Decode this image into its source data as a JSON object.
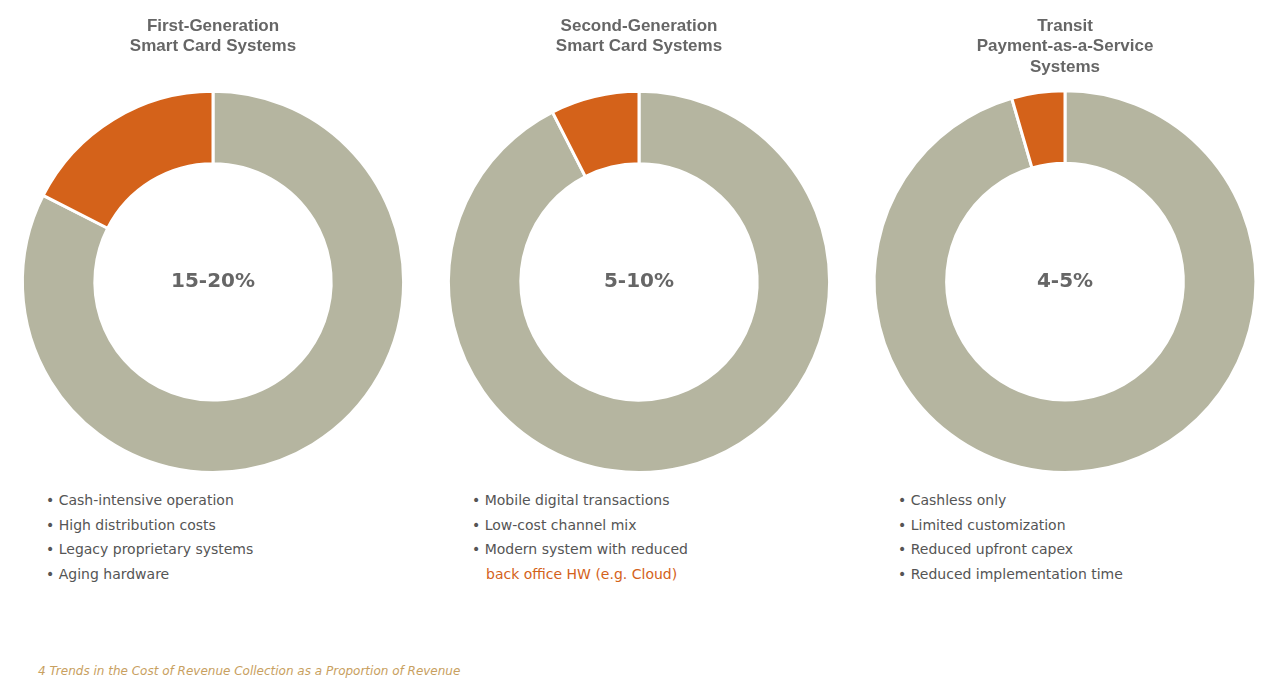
{
  "chart_data": [
    {
      "type": "doughnut",
      "title": "First-Generation\nSmart Card Systems",
      "values": [
        82.5,
        17.5
      ],
      "colors": [
        "#b5b5a0",
        "#d4621a"
      ],
      "annotations": {
        "center": "15-20%",
        "bullets": [
          {
            "text": "• Cash-intensive operation",
            "color": "#555555"
          },
          {
            "text": "• High distribution costs",
            "color": "#555555"
          },
          {
            "text": "• Legacy proprietary systems",
            "color": "#555555"
          },
          {
            "text": "• Aging hardware",
            "color": "#555555"
          }
        ]
      }
    },
    {
      "type": "doughnut",
      "title": "Second-Generation\nSmart Card Systems",
      "values": [
        92.5,
        7.5
      ],
      "colors": [
        "#b5b5a0",
        "#d4621a"
      ],
      "annotations": {
        "center": "5-10%",
        "bullets": [
          {
            "text": "• Mobile digital transactions",
            "color": "#555555"
          },
          {
            "text": "• Low-cost channel mix",
            "color": "#555555"
          },
          {
            "text": "• Modern system with reduced",
            "color": "#555555"
          },
          {
            "text": "back office HW (e.g. Cloud)",
            "color": "#d4621a",
            "continuation": true
          }
        ]
      }
    },
    {
      "type": "doughnut",
      "title": "Transit\nPayment-as-a-Service\nSystems",
      "values": [
        95.5,
        4.5
      ],
      "colors": [
        "#b5b5a0",
        "#d4621a"
      ],
      "annotations": {
        "center": "4-5%",
        "bullets": [
          {
            "text": "• Cashless only",
            "color": "#555555"
          },
          {
            "text": "• Limited customization",
            "color": "#555555"
          },
          {
            "text": "• Reduced upfront capex",
            "color": "#555555"
          },
          {
            "text": "• Reduced implementation time",
            "color": "#555555"
          }
        ]
      }
    }
  ],
  "footer": {
    "text": "4  Trends in the Cost of Revenue Collection as a Proportion of Revenue",
    "color": "#c8a060"
  }
}
